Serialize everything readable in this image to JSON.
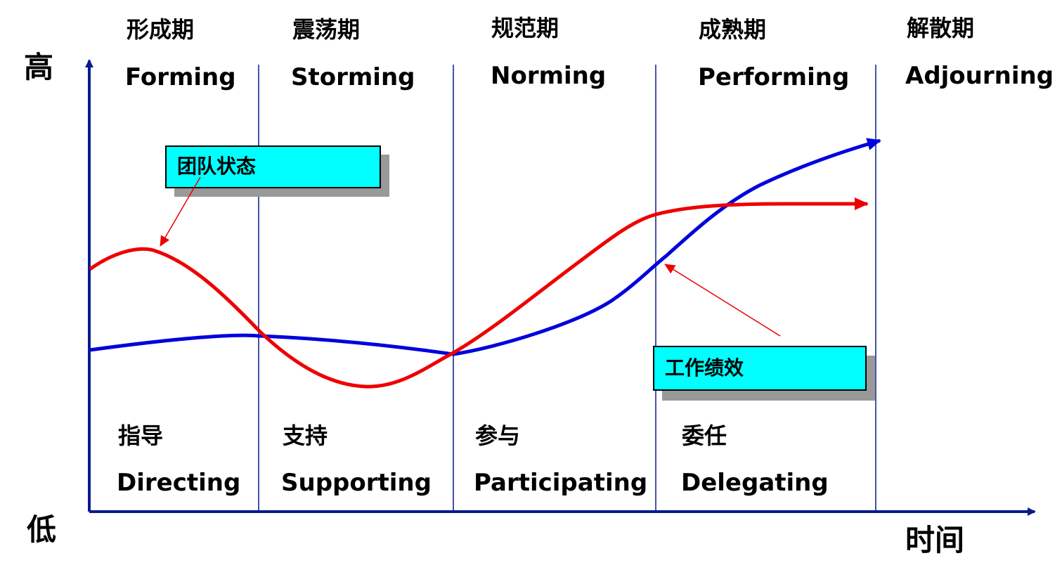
{
  "axis": {
    "y_high": "高",
    "y_low": "低",
    "x_label": "时间"
  },
  "stages": [
    {
      "cn": "形成期",
      "en": "Forming"
    },
    {
      "cn": "震荡期",
      "en": "Storming"
    },
    {
      "cn": "规范期",
      "en": "Norming"
    },
    {
      "cn": "成熟期",
      "en": "Performing"
    },
    {
      "cn": "解散期",
      "en": "Adjourning"
    }
  ],
  "leadership_styles": [
    {
      "cn": "指导",
      "en": "Directing"
    },
    {
      "cn": "支持",
      "en": "Supporting"
    },
    {
      "cn": "参与",
      "en": "Participating"
    },
    {
      "cn": "委任",
      "en": "Delegating"
    }
  ],
  "callouts": {
    "team_state": "团队状态",
    "work_performance": "工作绩效"
  },
  "colors": {
    "axis": "#0a1a8c",
    "divider": "#0a1a8c",
    "team_state_curve": "#ee0000",
    "performance_curve": "#0000dd",
    "callout_fill": "#00ffff",
    "callout_shadow": "#999999",
    "pointer": "#ee0000"
  }
}
